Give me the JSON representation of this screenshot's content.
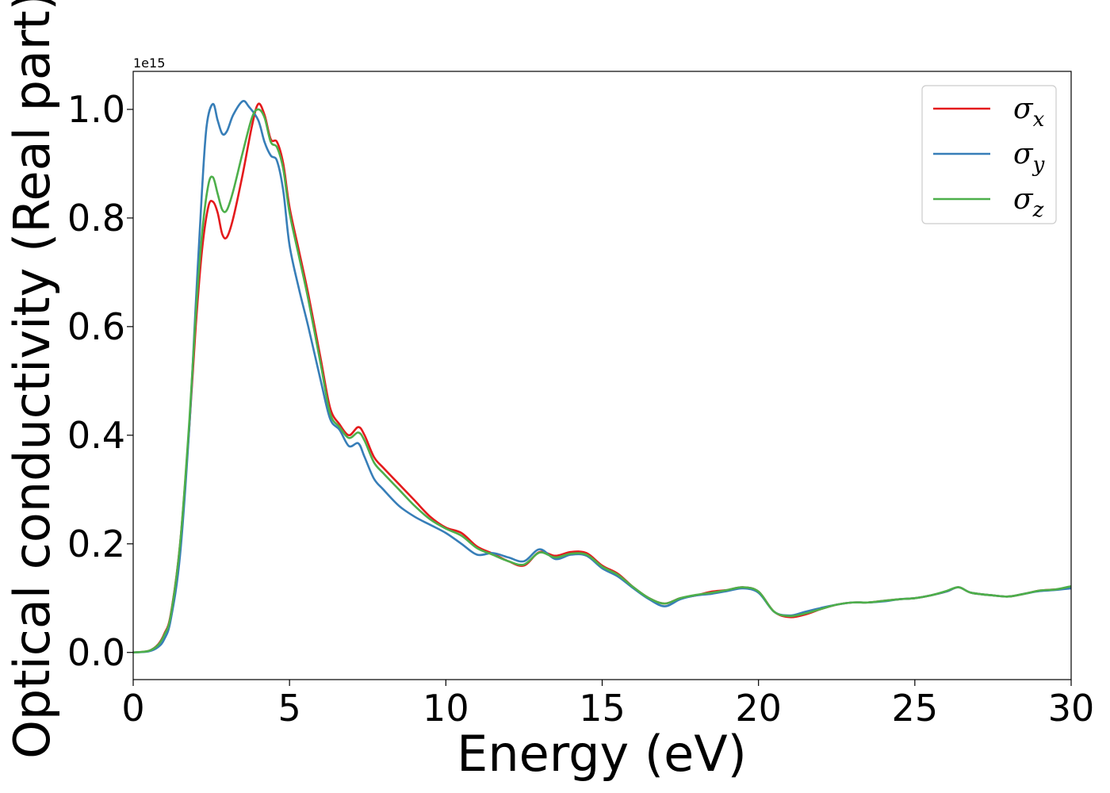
{
  "chart_data": {
    "type": "line",
    "xlabel": "Energy (eV)",
    "ylabel": "Optical conductivity (Real part)",
    "y_offset_text": "1e15",
    "xlim": [
      0,
      30
    ],
    "ylim": [
      -0.05,
      1.07
    ],
    "y_scale_factor": 1000000000000000.0,
    "xticks": [
      0,
      5,
      10,
      15,
      20,
      25,
      30
    ],
    "xtick_labels": [
      "0",
      "5",
      "10",
      "15",
      "20",
      "25",
      "30"
    ],
    "yticks": [
      0.0,
      0.2,
      0.4,
      0.6,
      0.8,
      1.0
    ],
    "ytick_labels": [
      "0.0",
      "0.2",
      "0.4",
      "0.6",
      "0.8",
      "1.0"
    ],
    "grid": false,
    "legend_position": "top-right",
    "series": [
      {
        "name": "σx",
        "legend_base": "σ",
        "legend_sub": "x",
        "color": "#e41a1c",
        "x": [
          0,
          0.5,
          0.8,
          1.0,
          1.2,
          1.5,
          1.8,
          2.0,
          2.2,
          2.4,
          2.55,
          2.7,
          2.85,
          3.0,
          3.2,
          3.5,
          3.8,
          4.0,
          4.2,
          4.4,
          4.6,
          4.8,
          5.0,
          5.3,
          5.6,
          6.0,
          6.3,
          6.6,
          6.9,
          7.2,
          7.4,
          7.7,
          8.0,
          8.5,
          9.0,
          9.5,
          10.0,
          10.5,
          11.0,
          11.5,
          12.0,
          12.5,
          13.0,
          13.5,
          14.0,
          14.5,
          15.0,
          15.5,
          16.0,
          16.5,
          17.0,
          17.5,
          18.0,
          18.5,
          19.0,
          19.5,
          20.0,
          20.5,
          21.0,
          21.5,
          22.0,
          22.5,
          23.0,
          23.5,
          24.0,
          24.5,
          25.0,
          25.5,
          26.0,
          26.4,
          26.8,
          27.5,
          28.0,
          28.5,
          29.0,
          29.5,
          30.0
        ],
        "y": [
          0,
          0.003,
          0.015,
          0.035,
          0.07,
          0.2,
          0.42,
          0.6,
          0.74,
          0.82,
          0.83,
          0.81,
          0.77,
          0.765,
          0.8,
          0.88,
          0.97,
          1.01,
          0.99,
          0.945,
          0.94,
          0.9,
          0.82,
          0.74,
          0.66,
          0.54,
          0.45,
          0.42,
          0.4,
          0.415,
          0.4,
          0.36,
          0.34,
          0.31,
          0.28,
          0.25,
          0.23,
          0.22,
          0.195,
          0.182,
          0.168,
          0.16,
          0.185,
          0.178,
          0.185,
          0.183,
          0.16,
          0.145,
          0.12,
          0.1,
          0.09,
          0.1,
          0.105,
          0.112,
          0.115,
          0.12,
          0.112,
          0.075,
          0.065,
          0.07,
          0.08,
          0.088,
          0.092,
          0.092,
          0.095,
          0.098,
          0.1,
          0.105,
          0.112,
          0.12,
          0.11,
          0.105,
          0.103,
          0.108,
          0.114,
          0.116,
          0.12
        ]
      },
      {
        "name": "σy",
        "legend_base": "σ",
        "legend_sub": "y",
        "color": "#377eb8",
        "x": [
          0,
          0.5,
          0.8,
          1.0,
          1.2,
          1.5,
          1.8,
          2.0,
          2.2,
          2.35,
          2.55,
          2.7,
          2.85,
          3.0,
          3.2,
          3.5,
          3.7,
          4.0,
          4.2,
          4.4,
          4.6,
          4.8,
          5.0,
          5.3,
          5.6,
          6.0,
          6.3,
          6.6,
          6.9,
          7.2,
          7.4,
          7.7,
          8.0,
          8.5,
          9.0,
          9.5,
          10.0,
          10.5,
          11.0,
          11.5,
          12.0,
          12.5,
          13.0,
          13.5,
          14.0,
          14.5,
          15.0,
          15.5,
          16.0,
          16.5,
          17.0,
          17.5,
          18.0,
          18.5,
          19.0,
          19.5,
          20.0,
          20.5,
          21.0,
          21.5,
          22.0,
          22.5,
          23.0,
          23.5,
          24.0,
          24.5,
          25.0,
          25.5,
          26.0,
          26.4,
          26.8,
          27.5,
          28.0,
          28.5,
          29.0,
          29.5,
          30.0
        ],
        "y": [
          0,
          0.002,
          0.01,
          0.025,
          0.06,
          0.18,
          0.42,
          0.64,
          0.85,
          0.97,
          1.01,
          0.98,
          0.955,
          0.96,
          0.99,
          1.015,
          1.005,
          0.98,
          0.94,
          0.915,
          0.905,
          0.85,
          0.75,
          0.67,
          0.6,
          0.5,
          0.43,
          0.41,
          0.38,
          0.385,
          0.36,
          0.32,
          0.3,
          0.27,
          0.25,
          0.235,
          0.22,
          0.2,
          0.18,
          0.183,
          0.175,
          0.168,
          0.19,
          0.172,
          0.18,
          0.178,
          0.155,
          0.14,
          0.118,
          0.098,
          0.085,
          0.098,
          0.105,
          0.108,
          0.113,
          0.118,
          0.11,
          0.075,
          0.068,
          0.075,
          0.082,
          0.088,
          0.092,
          0.092,
          0.094,
          0.098,
          0.1,
          0.105,
          0.112,
          0.12,
          0.11,
          0.105,
          0.103,
          0.108,
          0.113,
          0.115,
          0.118
        ]
      },
      {
        "name": "σz",
        "legend_base": "σ",
        "legend_sub": "z",
        "color": "#4daf4a",
        "x": [
          0,
          0.5,
          0.8,
          1.0,
          1.2,
          1.5,
          1.8,
          2.0,
          2.2,
          2.4,
          2.55,
          2.7,
          2.85,
          3.0,
          3.2,
          3.5,
          3.8,
          4.0,
          4.2,
          4.4,
          4.6,
          4.8,
          5.0,
          5.3,
          5.6,
          6.0,
          6.3,
          6.6,
          6.9,
          7.2,
          7.4,
          7.7,
          8.0,
          8.5,
          9.0,
          9.5,
          10.0,
          10.5,
          11.0,
          11.5,
          12.0,
          12.5,
          13.0,
          13.5,
          14.0,
          14.5,
          15.0,
          15.5,
          16.0,
          16.5,
          17.0,
          17.5,
          18.0,
          18.5,
          19.0,
          19.5,
          20.0,
          20.5,
          21.0,
          21.5,
          22.0,
          22.5,
          23.0,
          23.5,
          24.0,
          24.5,
          25.0,
          25.5,
          26.0,
          26.4,
          26.8,
          27.5,
          28.0,
          28.5,
          29.0,
          29.5,
          30.0
        ],
        "y": [
          0,
          0.003,
          0.014,
          0.033,
          0.068,
          0.2,
          0.43,
          0.62,
          0.77,
          0.86,
          0.875,
          0.845,
          0.815,
          0.815,
          0.85,
          0.92,
          0.985,
          1.0,
          0.985,
          0.94,
          0.93,
          0.89,
          0.81,
          0.73,
          0.65,
          0.53,
          0.44,
          0.415,
          0.395,
          0.405,
          0.39,
          0.35,
          0.33,
          0.3,
          0.27,
          0.245,
          0.228,
          0.215,
          0.192,
          0.18,
          0.168,
          0.162,
          0.184,
          0.175,
          0.182,
          0.18,
          0.158,
          0.143,
          0.12,
          0.1,
          0.09,
          0.1,
          0.106,
          0.11,
          0.115,
          0.12,
          0.112,
          0.075,
          0.067,
          0.072,
          0.08,
          0.088,
          0.092,
          0.092,
          0.095,
          0.098,
          0.1,
          0.105,
          0.113,
          0.12,
          0.11,
          0.105,
          0.103,
          0.108,
          0.114,
          0.116,
          0.122
        ]
      }
    ]
  }
}
